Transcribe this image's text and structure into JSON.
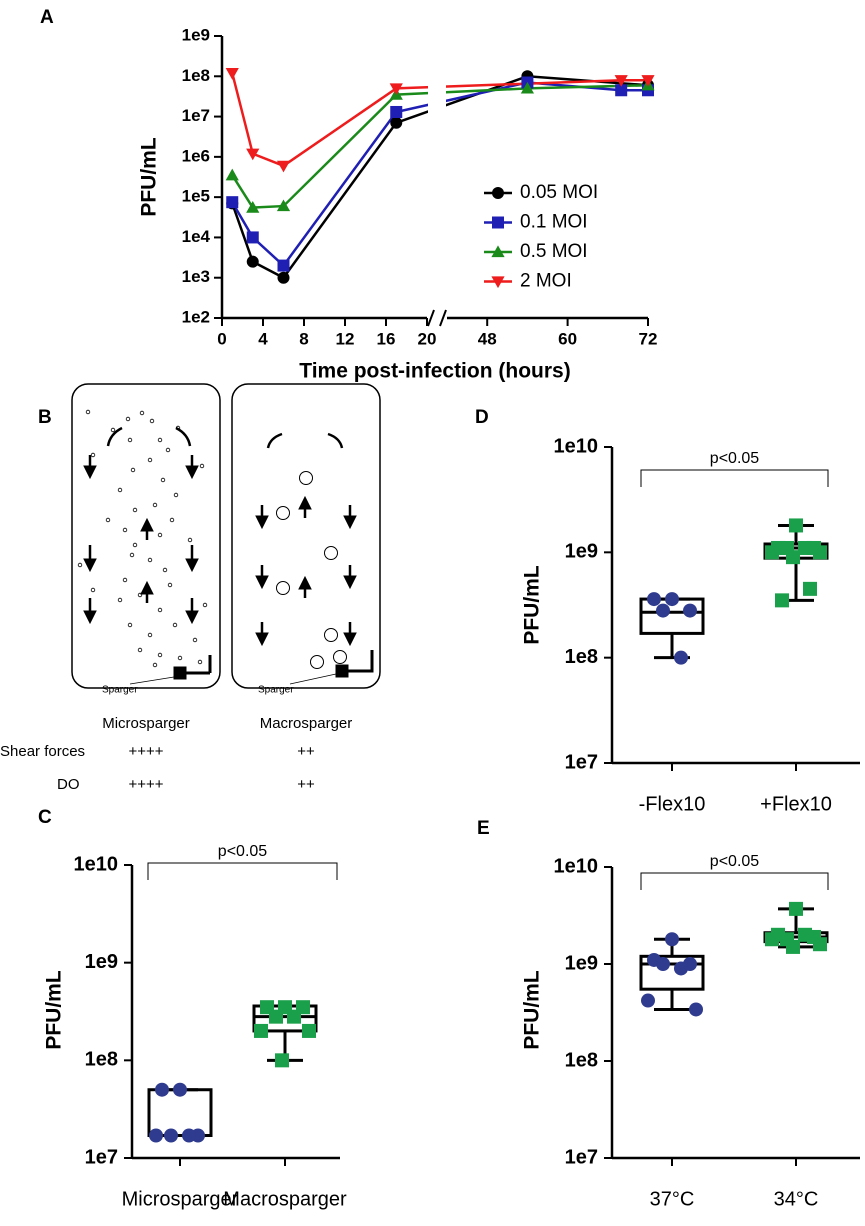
{
  "chart_data": [
    {
      "type": "line",
      "panel": "A",
      "ylabel": "PFU/mL",
      "xlabel": "Time post-infection (hours)",
      "log_y": true,
      "ylim": [
        100,
        1000000000
      ],
      "yticks": [
        {
          "value": 100,
          "label": "1e2"
        },
        {
          "value": 1000,
          "label": "1e3"
        },
        {
          "value": 10000,
          "label": "1e4"
        },
        {
          "value": 100000,
          "label": "1e5"
        },
        {
          "value": 1000000,
          "label": "1e6"
        },
        {
          "value": 10000000,
          "label": "1e7"
        },
        {
          "value": 100000000,
          "label": "1e8"
        },
        {
          "value": 1000000000,
          "label": "1e9"
        }
      ],
      "x_segments": [
        [
          0,
          20
        ],
        [
          42,
          72
        ]
      ],
      "xticks": [
        0,
        4,
        8,
        12,
        16,
        20,
        48,
        60,
        72
      ],
      "legend": "right",
      "series": [
        {
          "name": "0.05 MOI",
          "color": "#000000",
          "marker": "circle",
          "x": [
            1,
            3,
            6,
            17,
            54,
            72
          ],
          "values": [
            70000,
            2500,
            1000,
            7000000,
            100000000,
            60000000
          ]
        },
        {
          "name": "0.1 MOI",
          "color": "#1f1fb4",
          "marker": "square",
          "x": [
            1,
            3,
            6,
            17,
            54,
            68,
            72
          ],
          "values": [
            75000,
            10000,
            2000,
            13000000,
            70000000,
            45000000,
            45000000
          ]
        },
        {
          "name": "0.5 MOI",
          "color": "#1a8a1a",
          "marker": "triangle-up",
          "x": [
            1,
            3,
            6,
            17,
            54,
            72
          ],
          "values": [
            350000,
            55000,
            60000,
            35000000,
            50000000,
            60000000
          ]
        },
        {
          "name": "2 MOI",
          "color": "#ee1c1c",
          "marker": "triangle-down",
          "x": [
            1,
            3,
            6,
            17,
            68,
            72
          ],
          "values": [
            120000000,
            1200000,
            600000,
            50000000,
            80000000,
            80000000
          ]
        }
      ]
    },
    {
      "type": "box",
      "panel": "C",
      "ylabel": "PFU/mL",
      "log_y": true,
      "ylim": [
        10000000,
        10000000000
      ],
      "yticks": [
        {
          "value": 10000000,
          "label": "1e7"
        },
        {
          "value": 100000000,
          "label": "1e8"
        },
        {
          "value": 1000000000,
          "label": "1e9"
        },
        {
          "value": 10000000000,
          "label": "1e10"
        }
      ],
      "categories": [
        "Microsparger",
        "Macrosparger"
      ],
      "boxes": [
        {
          "min": 17000000,
          "q1": 17000000,
          "median": 17000000,
          "q3": 50000000,
          "max": 50000000
        },
        {
          "min": 100000000,
          "q1": 200000000,
          "median": 280000000,
          "q3": 360000000,
          "max": 360000000
        }
      ],
      "points": [
        [
          50000000,
          50000000,
          17000000,
          17000000,
          17000000,
          17000000
        ],
        [
          350000000,
          350000000,
          350000000,
          280000000,
          280000000,
          200000000,
          200000000,
          100000000
        ]
      ],
      "point_colors": [
        "#2e3b8e",
        "#1aa04a"
      ],
      "point_markers": [
        "circle",
        "square"
      ],
      "annotation": "p<0.05"
    },
    {
      "type": "box",
      "panel": "D",
      "ylabel": "PFU/mL",
      "log_y": true,
      "ylim": [
        10000000,
        10000000000
      ],
      "yticks": [
        {
          "value": 10000000,
          "label": "1e7"
        },
        {
          "value": 100000000,
          "label": "1e8"
        },
        {
          "value": 1000000000,
          "label": "1e9"
        },
        {
          "value": 10000000000,
          "label": "1e10"
        }
      ],
      "categories": [
        "-Flex10",
        "+Flex10"
      ],
      "boxes": [
        {
          "min": 100000000,
          "q1": 170000000,
          "median": 270000000,
          "q3": 360000000,
          "max": 360000000
        },
        {
          "min": 350000000,
          "q1": 880000000,
          "median": 1100000000,
          "q3": 1200000000,
          "max": 1800000000
        }
      ],
      "points": [
        [
          360000000,
          360000000,
          280000000,
          280000000,
          100000000
        ],
        [
          1800000000,
          1100000000,
          1100000000,
          1100000000,
          1100000000,
          1000000000,
          1000000000,
          900000000,
          450000000,
          350000000
        ]
      ],
      "point_colors": [
        "#2e3b8e",
        "#1aa04a"
      ],
      "point_markers": [
        "circle",
        "square"
      ],
      "annotation": "p<0.05"
    },
    {
      "type": "box",
      "panel": "E",
      "ylabel": "PFU/mL",
      "log_y": true,
      "ylim": [
        10000000,
        10000000000
      ],
      "yticks": [
        {
          "value": 10000000,
          "label": "1e7"
        },
        {
          "value": 100000000,
          "label": "1e8"
        },
        {
          "value": 1000000000,
          "label": "1e9"
        },
        {
          "value": 10000000000,
          "label": "1e10"
        }
      ],
      "categories": [
        "37°C",
        "34°C"
      ],
      "boxes": [
        {
          "min": 340000000,
          "q1": 550000000,
          "median": 1000000000,
          "q3": 1200000000,
          "max": 1800000000
        },
        {
          "min": 1500000000,
          "q1": 1700000000,
          "median": 1900000000,
          "q3": 2100000000,
          "max": 3700000000
        }
      ],
      "points": [
        [
          1800000000,
          1100000000,
          1000000000,
          1000000000,
          900000000,
          420000000,
          340000000
        ],
        [
          3700000000,
          2000000000,
          1900000000,
          1800000000,
          2000000000,
          1800000000,
          1600000000,
          1500000000
        ]
      ],
      "point_colors": [
        "#2e3b8e",
        "#1aa04a"
      ],
      "point_markers": [
        "circle",
        "square"
      ],
      "annotation": "p<0.05"
    }
  ],
  "diagram": {
    "panel": "B",
    "spargers": [
      "Sparger",
      "Sparger"
    ],
    "columns": [
      "Microsparger",
      "Macrosparger"
    ],
    "rows": [
      {
        "label": "Shear forces",
        "values": [
          "++++",
          "++"
        ]
      },
      {
        "label": "DO",
        "values": [
          "++++",
          "++"
        ]
      }
    ]
  }
}
